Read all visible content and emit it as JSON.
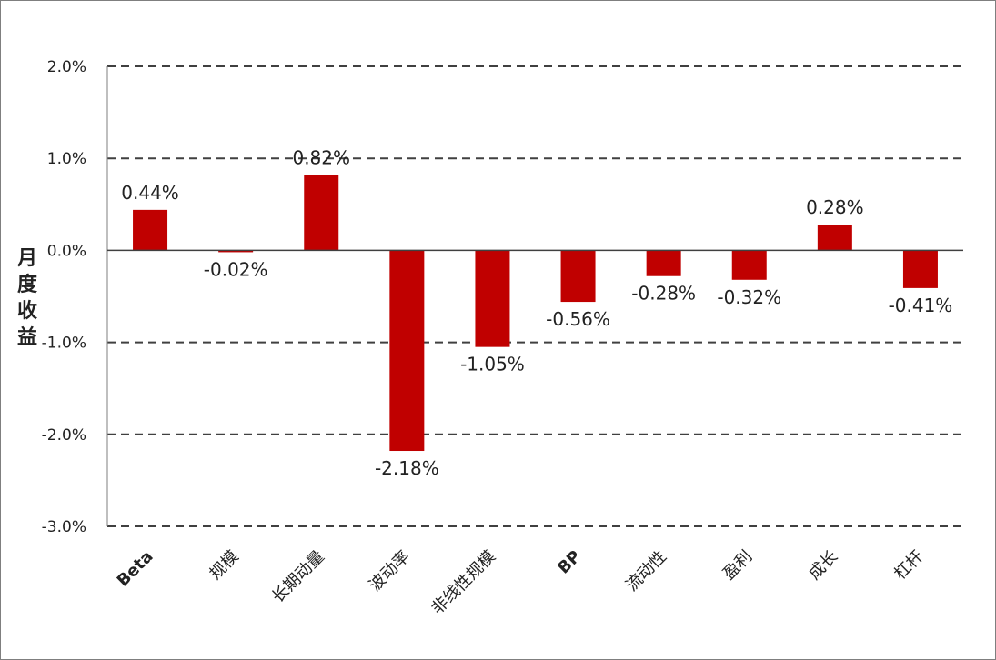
{
  "chart_data": {
    "type": "bar",
    "title": "",
    "xlabel": "",
    "ylabel": "月度收益",
    "ylim": [
      -3.0,
      2.0
    ],
    "y_ticks": [
      2.0,
      1.0,
      0.0,
      -1.0,
      -2.0,
      -3.0
    ],
    "y_tick_labels": [
      "2.0%",
      "1.0%",
      "0.0%",
      "-1.0%",
      "-2.0%",
      "-3.0%"
    ],
    "grid": "dashed-horizontal",
    "categories": [
      "Beta",
      "规模",
      "长期动量",
      "波动率",
      "非线性规模",
      "BP",
      "流动性",
      "盈利",
      "成长",
      "杠杆"
    ],
    "bold_categories": [
      "Beta",
      "BP"
    ],
    "values": [
      0.44,
      -0.02,
      0.82,
      -2.18,
      -1.05,
      -0.56,
      -0.28,
      -0.32,
      0.28,
      -0.41
    ],
    "data_labels": [
      "0.44%",
      "-0.02%",
      "0.82%",
      "-2.18%",
      "-1.05%",
      "-0.56%",
      "-0.28%",
      "-0.32%",
      "0.28%",
      "-0.41%"
    ],
    "bar_color": "#c00000",
    "axis_color": "#404040",
    "grid_color": "#404040"
  }
}
